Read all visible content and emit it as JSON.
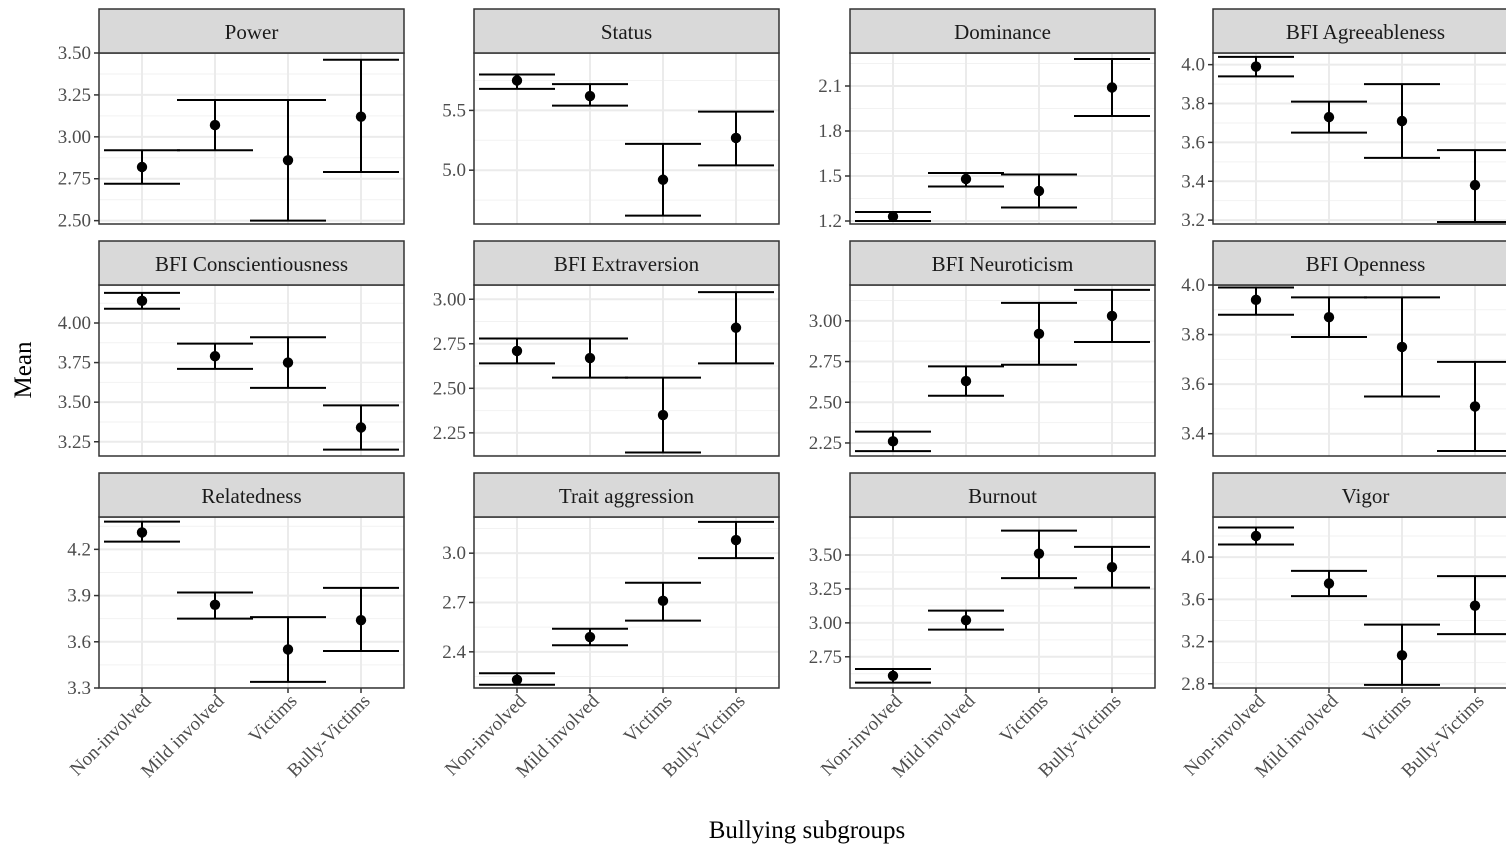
{
  "chart_data": {
    "type": "errorbar",
    "xlabel": "Bullying subgroups",
    "ylabel": "Mean",
    "grid": true,
    "categories": [
      "Non-involved",
      "Mild involved",
      "Victims",
      "Bully-Victims"
    ],
    "panels": [
      {
        "title": "Power",
        "ylim": [
          2.48,
          3.5
        ],
        "yticks": [
          2.5,
          2.75,
          3.0,
          3.25,
          3.5
        ],
        "tick_format": "2",
        "mean": [
          2.82,
          3.07,
          2.86,
          3.12
        ],
        "lower": [
          2.72,
          2.92,
          2.5,
          2.79
        ],
        "upper": [
          2.92,
          3.22,
          3.22,
          3.46
        ]
      },
      {
        "title": "Status",
        "ylim": [
          4.55,
          5.98
        ],
        "yticks": [
          5.0,
          5.5
        ],
        "tick_format": "1",
        "mean": [
          5.75,
          5.62,
          4.92,
          5.27
        ],
        "lower": [
          5.68,
          5.54,
          4.62,
          5.04
        ],
        "upper": [
          5.8,
          5.72,
          5.22,
          5.49
        ]
      },
      {
        "title": "Dominance",
        "ylim": [
          1.18,
          2.32
        ],
        "yticks": [
          1.2,
          1.5,
          1.8,
          2.1
        ],
        "tick_format": "1",
        "mean": [
          1.23,
          1.48,
          1.4,
          2.09
        ],
        "lower": [
          1.2,
          1.43,
          1.29,
          1.9
        ],
        "upper": [
          1.26,
          1.52,
          1.51,
          2.28
        ]
      },
      {
        "title": "BFI Agreeableness",
        "ylim": [
          3.18,
          4.06
        ],
        "yticks": [
          3.2,
          3.4,
          3.6,
          3.8,
          4.0
        ],
        "tick_format": "1",
        "mean": [
          3.99,
          3.73,
          3.71,
          3.38
        ],
        "lower": [
          3.94,
          3.65,
          3.52,
          3.19
        ],
        "upper": [
          4.04,
          3.81,
          3.9,
          3.56
        ]
      },
      {
        "title": "BFI Conscientiousness",
        "ylim": [
          3.16,
          4.24
        ],
        "yticks": [
          3.25,
          3.5,
          3.75,
          4.0
        ],
        "tick_format": "2",
        "mean": [
          4.14,
          3.79,
          3.75,
          3.34
        ],
        "lower": [
          4.09,
          3.71,
          3.59,
          3.2
        ],
        "upper": [
          4.19,
          3.87,
          3.91,
          3.48
        ]
      },
      {
        "title": "BFI Extraversion",
        "ylim": [
          2.12,
          3.08
        ],
        "yticks": [
          2.25,
          2.5,
          2.75,
          3.0
        ],
        "tick_format": "2",
        "mean": [
          2.71,
          2.67,
          2.35,
          2.84
        ],
        "lower": [
          2.64,
          2.56,
          2.14,
          2.64
        ],
        "upper": [
          2.78,
          2.78,
          2.56,
          3.04
        ]
      },
      {
        "title": "BFI Neuroticism",
        "ylim": [
          2.17,
          3.22
        ],
        "yticks": [
          2.25,
          2.5,
          2.75,
          3.0
        ],
        "tick_format": "2",
        "mean": [
          2.26,
          2.63,
          2.92,
          3.03
        ],
        "lower": [
          2.2,
          2.54,
          2.73,
          2.87
        ],
        "upper": [
          2.32,
          2.72,
          3.11,
          3.19
        ]
      },
      {
        "title": "BFI Openness",
        "ylim": [
          3.31,
          4.0
        ],
        "yticks": [
          3.4,
          3.6,
          3.8,
          4.0
        ],
        "tick_format": "1",
        "mean": [
          3.94,
          3.87,
          3.75,
          3.51
        ],
        "lower": [
          3.88,
          3.79,
          3.55,
          3.33
        ],
        "upper": [
          3.99,
          3.95,
          3.95,
          3.69
        ]
      },
      {
        "title": "Relatedness",
        "ylim": [
          3.3,
          4.41
        ],
        "yticks": [
          3.3,
          3.6,
          3.9,
          4.2
        ],
        "tick_format": "1",
        "mean": [
          4.31,
          3.84,
          3.55,
          3.74
        ],
        "lower": [
          4.25,
          3.75,
          3.34,
          3.54
        ],
        "upper": [
          4.38,
          3.92,
          3.76,
          3.95
        ]
      },
      {
        "title": "Trait aggression",
        "ylim": [
          2.18,
          3.22
        ],
        "yticks": [
          2.4,
          2.7,
          3.0
        ],
        "tick_format": "1",
        "mean": [
          2.23,
          2.49,
          2.71,
          3.08
        ],
        "lower": [
          2.2,
          2.44,
          2.59,
          2.97
        ],
        "upper": [
          2.27,
          2.54,
          2.82,
          3.19
        ]
      },
      {
        "title": "Burnout",
        "ylim": [
          2.52,
          3.78
        ],
        "yticks": [
          2.75,
          3.0,
          3.25,
          3.5
        ],
        "tick_format": "2",
        "mean": [
          2.61,
          3.02,
          3.51,
          3.41
        ],
        "lower": [
          2.56,
          2.95,
          3.33,
          3.26
        ],
        "upper": [
          2.66,
          3.09,
          3.68,
          3.56
        ]
      },
      {
        "title": "Vigor",
        "ylim": [
          2.76,
          4.38
        ],
        "yticks": [
          2.8,
          3.2,
          3.6,
          4.0
        ],
        "tick_format": "1",
        "mean": [
          4.2,
          3.75,
          3.07,
          3.54
        ],
        "lower": [
          4.12,
          3.63,
          2.79,
          3.27
        ],
        "upper": [
          4.28,
          3.87,
          3.36,
          3.82
        ]
      }
    ]
  }
}
